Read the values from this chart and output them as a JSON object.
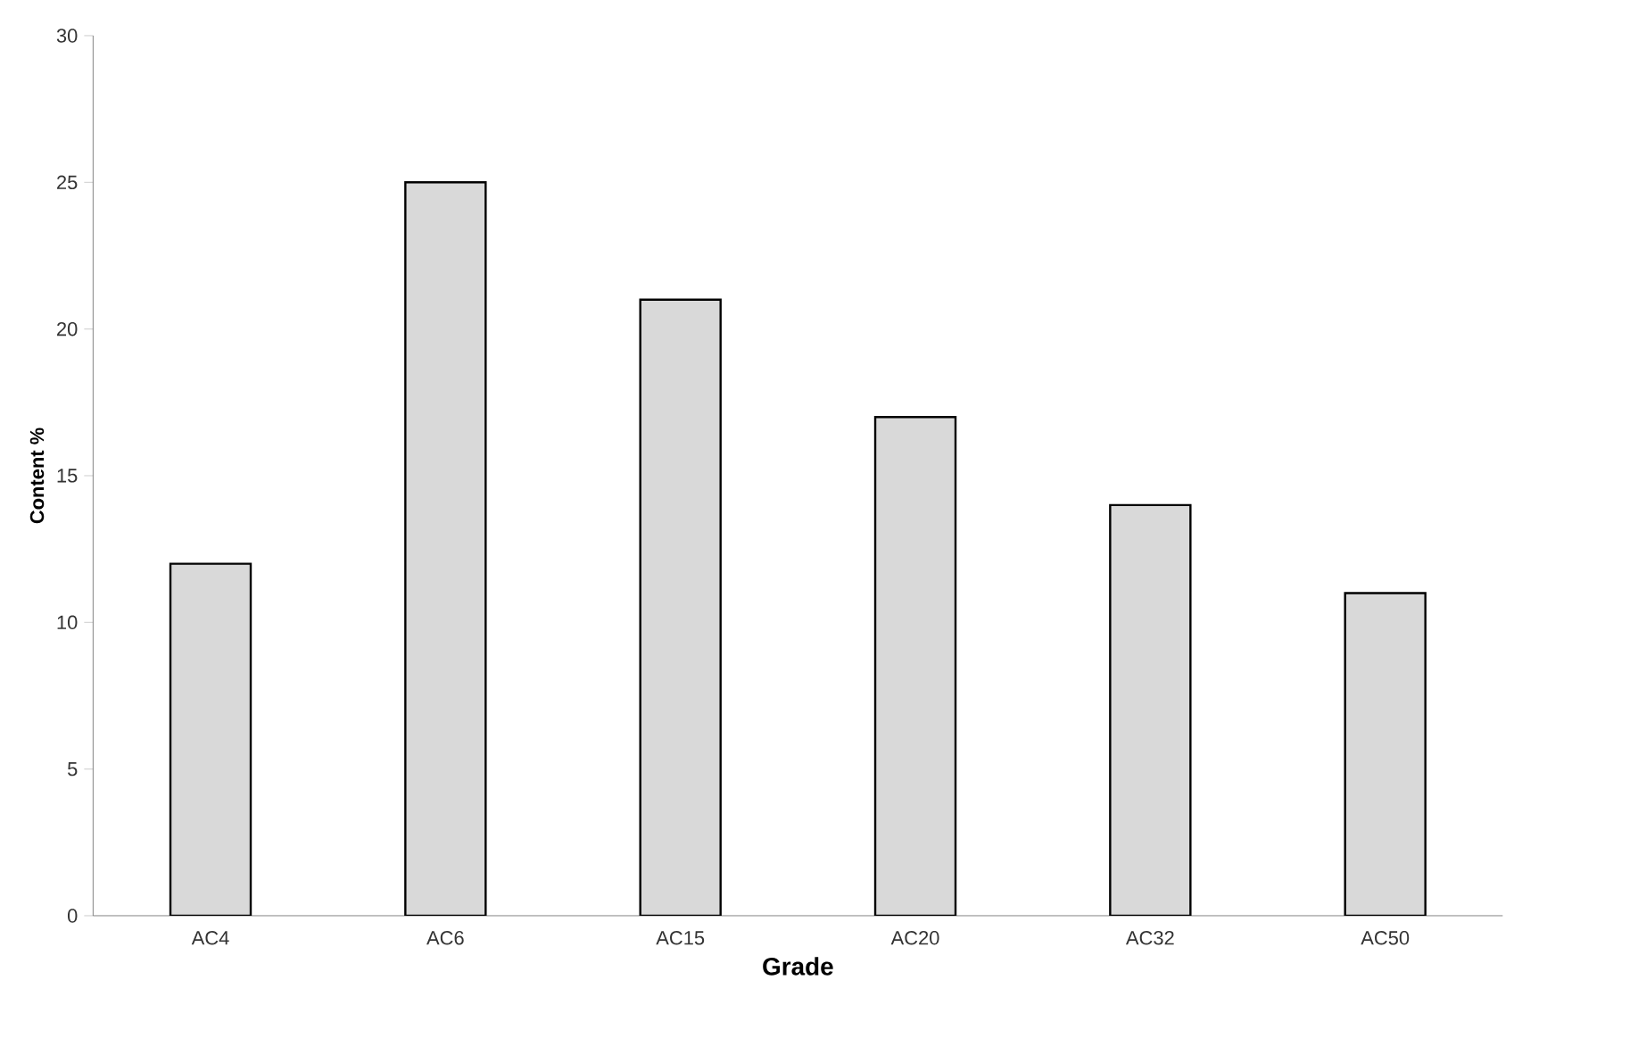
{
  "chart_data": {
    "type": "bar",
    "xlabel": "Grade",
    "ylabel": "Content %",
    "categories": [
      "AC4",
      "AC6",
      "AC15",
      "AC20",
      "AC32",
      "AC50"
    ],
    "values": [
      12,
      25,
      21,
      17,
      14,
      11
    ],
    "color": "#d9d9d9",
    "ylim": [
      0,
      30
    ],
    "yticks": [
      0,
      5,
      10,
      15,
      20,
      25,
      30
    ],
    "grid": false
  }
}
